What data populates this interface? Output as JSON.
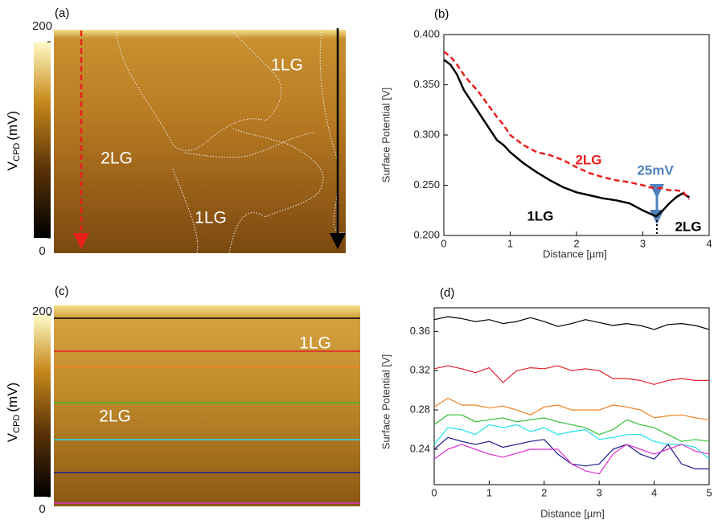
{
  "chart_data": [
    {
      "type": "image",
      "panel": "(a)",
      "colorbar": {
        "label": "V",
        "label_sub": "CPD",
        "label_unit": "(mV)",
        "clim": [
          0,
          200
        ],
        "ticks": [
          0,
          200
        ]
      },
      "annotations": [
        "1LG",
        "2LG",
        "1LG"
      ]
    },
    {
      "type": "line",
      "panel": "(b)",
      "xlabel": "Distance [µm]",
      "ylabel": "Surface Potential [V]",
      "x": [
        0,
        0.1,
        0.2,
        0.3,
        0.4,
        0.5,
        0.6,
        0.7,
        0.8,
        0.9,
        1.0,
        1.2,
        1.4,
        1.6,
        1.8,
        2.0,
        2.2,
        2.4,
        2.6,
        2.8,
        3.0,
        3.1,
        3.2,
        3.3,
        3.4,
        3.5,
        3.6,
        3.7
      ],
      "xlim": [
        0,
        4
      ],
      "xticks": [
        0,
        1,
        2,
        3,
        4
      ],
      "ylim": [
        0.2,
        0.4
      ],
      "yticks": [
        {
          "value": 0.2,
          "label": "0.200"
        },
        {
          "value": 0.25,
          "label": "0.250"
        },
        {
          "value": 0.3,
          "label": "0.300"
        },
        {
          "value": 0.35,
          "label": "0.350"
        },
        {
          "value": 0.4,
          "label": "0.400"
        }
      ],
      "series": [
        {
          "name": "1LG",
          "color": "#000000",
          "dashed": false,
          "values": [
            0.375,
            0.37,
            0.36,
            0.345,
            0.335,
            0.325,
            0.315,
            0.305,
            0.295,
            0.29,
            0.283,
            0.272,
            0.263,
            0.255,
            0.248,
            0.243,
            0.24,
            0.237,
            0.235,
            0.232,
            0.225,
            0.222,
            0.219,
            0.225,
            0.232,
            0.238,
            0.242,
            0.238
          ]
        },
        {
          "name": "2LG",
          "color": "#e8201c",
          "dashed": true,
          "values": [
            0.383,
            0.378,
            0.37,
            0.36,
            0.352,
            0.345,
            0.336,
            0.327,
            0.318,
            0.31,
            0.3,
            0.29,
            0.283,
            0.28,
            0.275,
            0.268,
            0.262,
            0.258,
            0.255,
            0.253,
            0.25,
            0.248,
            0.247,
            0.247,
            0.245,
            0.245,
            0.244,
            0.236
          ]
        }
      ],
      "annotations": [
        "25mV",
        "2LG"
      ]
    },
    {
      "type": "image",
      "panel": "(c)",
      "colorbar": {
        "label": "V",
        "label_sub": "CPD",
        "label_unit": "(mV)",
        "clim": [
          0,
          200
        ],
        "ticks": [
          0,
          200
        ]
      },
      "annotations": [
        "1LG",
        "2LG"
      ]
    },
    {
      "type": "line",
      "panel": "(d)",
      "xlabel": "Distance [µm]",
      "ylabel": "Surface Potential [V]",
      "x": [
        0,
        0.25,
        0.5,
        0.75,
        1,
        1.25,
        1.5,
        1.75,
        2,
        2.25,
        2.5,
        2.75,
        3,
        3.25,
        3.5,
        3.75,
        4,
        4.25,
        4.5,
        4.75,
        5
      ],
      "xlim": [
        0,
        5
      ],
      "xticks": [
        0,
        1,
        2,
        3,
        4,
        5
      ],
      "ylim": [
        0.204,
        0.384
      ],
      "yticks": [
        0.24,
        0.28,
        0.32,
        0.36
      ],
      "series": [
        {
          "color": "#000000",
          "values": [
            0.372,
            0.375,
            0.373,
            0.37,
            0.372,
            0.368,
            0.37,
            0.374,
            0.37,
            0.365,
            0.368,
            0.372,
            0.369,
            0.366,
            0.368,
            0.366,
            0.362,
            0.367,
            0.368,
            0.366,
            0.362
          ]
        },
        {
          "color": "#e0202a",
          "values": [
            0.322,
            0.325,
            0.322,
            0.318,
            0.323,
            0.308,
            0.32,
            0.323,
            0.322,
            0.325,
            0.32,
            0.322,
            0.32,
            0.312,
            0.312,
            0.31,
            0.306,
            0.31,
            0.312,
            0.31,
            0.31
          ]
        },
        {
          "color": "#f08020",
          "values": [
            0.283,
            0.292,
            0.285,
            0.285,
            0.282,
            0.284,
            0.28,
            0.275,
            0.283,
            0.285,
            0.28,
            0.28,
            0.28,
            0.285,
            0.283,
            0.28,
            0.272,
            0.274,
            0.275,
            0.272,
            0.27
          ]
        },
        {
          "color": "#30c030",
          "values": [
            0.265,
            0.275,
            0.275,
            0.268,
            0.27,
            0.272,
            0.268,
            0.27,
            0.272,
            0.268,
            0.265,
            0.262,
            0.255,
            0.26,
            0.27,
            0.265,
            0.262,
            0.255,
            0.248,
            0.25,
            0.248
          ]
        },
        {
          "color": "#20e0f0",
          "values": [
            0.245,
            0.262,
            0.26,
            0.255,
            0.265,
            0.262,
            0.265,
            0.258,
            0.262,
            0.255,
            0.258,
            0.26,
            0.25,
            0.252,
            0.255,
            0.255,
            0.248,
            0.245,
            0.245,
            0.242,
            0.23
          ]
        },
        {
          "color": "#1a1a8c",
          "values": [
            0.24,
            0.252,
            0.248,
            0.245,
            0.248,
            0.242,
            0.245,
            0.248,
            0.25,
            0.235,
            0.225,
            0.223,
            0.225,
            0.24,
            0.245,
            0.235,
            0.23,
            0.245,
            0.225,
            0.22,
            0.22
          ]
        },
        {
          "color": "#e030d0",
          "values": [
            0.23,
            0.24,
            0.245,
            0.24,
            0.235,
            0.232,
            0.236,
            0.24,
            0.24,
            0.24,
            0.225,
            0.218,
            0.215,
            0.235,
            0.245,
            0.24,
            0.235,
            0.24,
            0.245,
            0.238,
            0.235
          ]
        }
      ]
    }
  ]
}
